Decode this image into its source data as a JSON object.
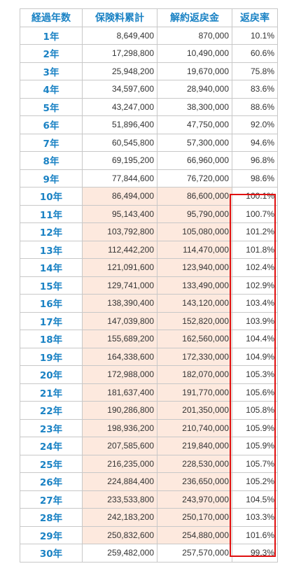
{
  "table": {
    "headers": [
      "経過年数",
      "保険料累計",
      "解約返戻金",
      "返戻率"
    ],
    "highlight_color": "#fde9de",
    "box_color": "#e01010",
    "header_color": "#1a82c4",
    "rows": [
      {
        "year": "1年",
        "premium": "8,649,400",
        "refund": "870,000",
        "rate": "10.1%"
      },
      {
        "year": "2年",
        "premium": "17,298,800",
        "refund": "10,490,000",
        "rate": "60.6%"
      },
      {
        "year": "3年",
        "premium": "25,948,200",
        "refund": "19,670,000",
        "rate": "75.8%"
      },
      {
        "year": "4年",
        "premium": "34,597,600",
        "refund": "28,940,000",
        "rate": "83.6%"
      },
      {
        "year": "5年",
        "premium": "43,247,000",
        "refund": "38,300,000",
        "rate": "88.6%"
      },
      {
        "year": "6年",
        "premium": "51,896,400",
        "refund": "47,750,000",
        "rate": "92.0%"
      },
      {
        "year": "7年",
        "premium": "60,545,800",
        "refund": "57,300,000",
        "rate": "94.6%"
      },
      {
        "year": "8年",
        "premium": "69,195,200",
        "refund": "66,960,000",
        "rate": "96.8%"
      },
      {
        "year": "9年",
        "premium": "77,844,600",
        "refund": "76,720,000",
        "rate": "98.6%"
      },
      {
        "year": "10年",
        "premium": "86,494,000",
        "refund": "86,600,000",
        "rate": "100.1%"
      },
      {
        "year": "11年",
        "premium": "95,143,400",
        "refund": "95,790,000",
        "rate": "100.7%"
      },
      {
        "year": "12年",
        "premium": "103,792,800",
        "refund": "105,080,000",
        "rate": "101.2%"
      },
      {
        "year": "13年",
        "premium": "112,442,200",
        "refund": "114,470,000",
        "rate": "101.8%"
      },
      {
        "year": "14年",
        "premium": "121,091,600",
        "refund": "123,940,000",
        "rate": "102.4%"
      },
      {
        "year": "15年",
        "premium": "129,741,000",
        "refund": "133,490,000",
        "rate": "102.9%"
      },
      {
        "year": "16年",
        "premium": "138,390,400",
        "refund": "143,120,000",
        "rate": "103.4%"
      },
      {
        "year": "17年",
        "premium": "147,039,800",
        "refund": "152,820,000",
        "rate": "103.9%"
      },
      {
        "year": "18年",
        "premium": "155,689,200",
        "refund": "162,560,000",
        "rate": "104.4%"
      },
      {
        "year": "19年",
        "premium": "164,338,600",
        "refund": "172,330,000",
        "rate": "104.9%"
      },
      {
        "year": "20年",
        "premium": "172,988,000",
        "refund": "182,070,000",
        "rate": "105.3%"
      },
      {
        "year": "21年",
        "premium": "181,637,400",
        "refund": "191,770,000",
        "rate": "105.6%"
      },
      {
        "year": "22年",
        "premium": "190,286,800",
        "refund": "201,350,000",
        "rate": "105.8%"
      },
      {
        "year": "23年",
        "premium": "198,936,200",
        "refund": "210,740,000",
        "rate": "105.9%"
      },
      {
        "year": "24年",
        "premium": "207,585,600",
        "refund": "219,840,000",
        "rate": "105.9%"
      },
      {
        "year": "25年",
        "premium": "216,235,000",
        "refund": "228,530,000",
        "rate": "105.7%"
      },
      {
        "year": "26年",
        "premium": "224,884,400",
        "refund": "236,650,000",
        "rate": "105.2%"
      },
      {
        "year": "27年",
        "premium": "233,533,800",
        "refund": "243,970,000",
        "rate": "104.5%"
      },
      {
        "year": "28年",
        "premium": "242,183,200",
        "refund": "250,170,000",
        "rate": "103.3%"
      },
      {
        "year": "29年",
        "premium": "250,832,600",
        "refund": "254,880,000",
        "rate": "101.6%"
      },
      {
        "year": "30年",
        "premium": "259,482,000",
        "refund": "257,570,000",
        "rate": "99.3%"
      }
    ]
  }
}
